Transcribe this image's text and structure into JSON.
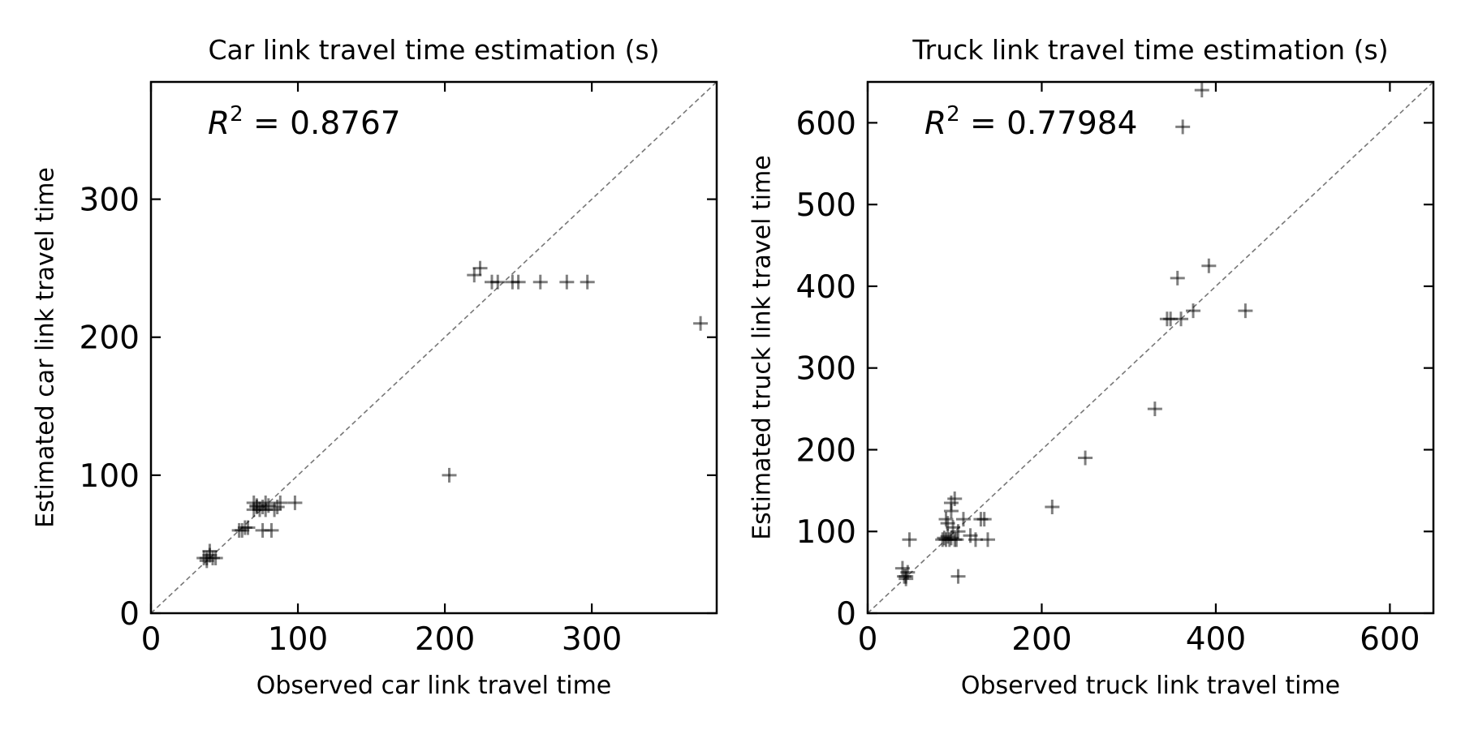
{
  "chart_data": [
    {
      "type": "scatter",
      "title": "Car link travel time estimation (s)",
      "xlabel": "Observed car link travel time",
      "ylabel": "Estimated car link travel time",
      "xlim": [
        0,
        385
      ],
      "ylim": [
        0,
        385
      ],
      "xticks": [
        0,
        100,
        200,
        300
      ],
      "yticks": [
        0,
        100,
        200,
        300
      ],
      "diagonal": true,
      "grid": false,
      "annotation": {
        "prefix": "R",
        "sup": "2",
        "text": " = 0.8767"
      },
      "marker": "+",
      "marker_color": "#000000",
      "points": {
        "x": [
          38,
          40,
          42,
          36,
          44,
          40,
          38,
          60,
          62,
          64,
          66,
          70,
          72,
          74,
          76,
          78,
          70,
          72,
          78,
          80,
          84,
          86,
          88,
          98,
          76,
          82,
          203,
          220,
          224,
          232,
          236,
          246,
          250,
          265,
          283,
          297,
          374
        ],
        "y": [
          40,
          42,
          40,
          40,
          40,
          45,
          38,
          60,
          60,
          62,
          62,
          75,
          77,
          75,
          77,
          75,
          80,
          78,
          80,
          78,
          75,
          77,
          80,
          80,
          60,
          60,
          100,
          245,
          250,
          240,
          240,
          240,
          240,
          240,
          240,
          240,
          210
        ]
      }
    },
    {
      "type": "scatter",
      "title": "Truck link travel time estimation (s)",
      "xlabel": "Observed truck link travel time",
      "ylabel": "Estimated truck link travel time",
      "xlim": [
        0,
        650
      ],
      "ylim": [
        0,
        650
      ],
      "xticks": [
        0,
        200,
        400,
        600
      ],
      "yticks": [
        0,
        100,
        200,
        300,
        400,
        500,
        600
      ],
      "diagonal": true,
      "grid": false,
      "annotation": {
        "prefix": "R",
        "sup": "2",
        "text": " = 0.77984"
      },
      "marker": "+",
      "marker_color": "#000000",
      "points": {
        "x": [
          42,
          44,
          46,
          44,
          40,
          48,
          86,
          90,
          94,
          96,
          100,
          90,
          92,
          98,
          104,
          110,
          118,
          124,
          130,
          134,
          138,
          88,
          92,
          96,
          100,
          96,
          102,
          104,
          212,
          250,
          330,
          344,
          348,
          360,
          356,
          374,
          384,
          392,
          434,
          362
        ],
        "y": [
          45,
          45,
          50,
          42,
          55,
          90,
          90,
          90,
          90,
          92,
          90,
          115,
          110,
          105,
          100,
          115,
          95,
          90,
          115,
          115,
          90,
          92,
          94,
          125,
          140,
          135,
          90,
          45,
          130,
          190,
          250,
          360,
          360,
          360,
          410,
          370,
          640,
          425,
          370,
          595
        ]
      }
    }
  ]
}
